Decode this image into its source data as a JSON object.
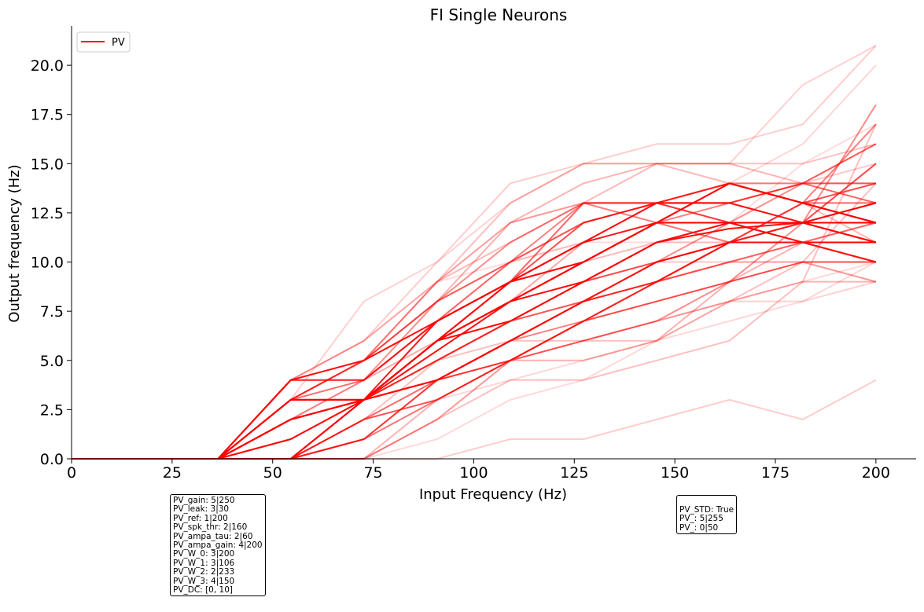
{
  "chart_data": {
    "type": "line",
    "title": "FI Single Neurons",
    "xlabel": "Input Frequency (Hz)",
    "ylabel": "Output frequency (Hz)",
    "xlim": [
      0,
      210
    ],
    "ylim": [
      0,
      22
    ],
    "xticks": [
      0,
      25,
      50,
      75,
      100,
      125,
      150,
      175,
      200
    ],
    "yticks": [
      0.0,
      2.5,
      5.0,
      7.5,
      10.0,
      12.5,
      15.0,
      17.5,
      20.0
    ],
    "xtick_labels": [
      "0",
      "25",
      "50",
      "75",
      "100",
      "125",
      "150",
      "175",
      "200"
    ],
    "ytick_labels": [
      "0.0",
      "2.5",
      "5.0",
      "7.5",
      "10.0",
      "12.5",
      "15.0",
      "17.5",
      "20.0"
    ],
    "grid": false,
    "legend": {
      "placement": "top-left",
      "entries": [
        {
          "label": "PV",
          "color": "#ff0000"
        }
      ]
    },
    "color": "#ff0000",
    "x": [
      0,
      18.2,
      36.4,
      54.5,
      72.7,
      90.9,
      109.1,
      127.3,
      145.5,
      163.6,
      181.8,
      200
    ],
    "series": [
      {
        "alpha": 0.95,
        "values": [
          0,
          0,
          0,
          4,
          5,
          7,
          9,
          10,
          12,
          14,
          13,
          12
        ]
      },
      {
        "alpha": 0.95,
        "values": [
          0,
          0,
          0,
          3,
          3,
          6,
          8,
          10,
          12,
          12,
          12,
          12
        ]
      },
      {
        "alpha": 0.95,
        "values": [
          0,
          0,
          0,
          2,
          3,
          6,
          8,
          9,
          11,
          11.7,
          12,
          11
        ]
      },
      {
        "alpha": 0.95,
        "values": [
          0,
          0,
          0,
          1,
          3,
          6,
          7,
          9,
          11,
          12,
          11,
          11
        ]
      },
      {
        "alpha": 0.95,
        "values": [
          0,
          0,
          0,
          0,
          3,
          5.5,
          8,
          10,
          12,
          12,
          12,
          13
        ]
      },
      {
        "alpha": 0.9,
        "values": [
          0,
          0,
          0,
          3,
          3,
          7,
          9,
          11,
          13,
          13,
          12,
          12
        ]
      },
      {
        "alpha": 0.9,
        "values": [
          0,
          0,
          0,
          2,
          3,
          6,
          9,
          11,
          12,
          14,
          13,
          12
        ]
      },
      {
        "alpha": 0.8,
        "values": [
          0,
          0,
          0,
          0,
          1,
          4,
          6,
          8,
          10,
          11,
          11,
          10
        ]
      },
      {
        "alpha": 0.7,
        "values": [
          0,
          0,
          0,
          0,
          3,
          4,
          6,
          8,
          9,
          11,
          11,
          11
        ]
      },
      {
        "alpha": 0.7,
        "values": [
          0,
          0,
          0,
          4,
          4,
          7,
          9,
          12,
          13,
          14,
          13,
          14
        ]
      },
      {
        "alpha": 0.7,
        "values": [
          0,
          0,
          0,
          3,
          3,
          5,
          7,
          9,
          10,
          11,
          12,
          12
        ]
      },
      {
        "alpha": 0.7,
        "values": [
          0,
          0,
          0,
          2,
          3,
          4,
          5,
          7,
          8,
          9,
          10,
          10
        ]
      },
      {
        "alpha": 0.6,
        "values": [
          0,
          0,
          0,
          0,
          2,
          3,
          5,
          7,
          9,
          11,
          13,
          13
        ]
      },
      {
        "alpha": 0.6,
        "values": [
          0,
          0,
          0,
          3,
          5,
          8,
          10,
          12,
          13,
          13,
          14,
          13
        ]
      },
      {
        "alpha": 0.6,
        "values": [
          0,
          0,
          0,
          2,
          3,
          6,
          9,
          13,
          13,
          12,
          12,
          11
        ]
      },
      {
        "alpha": 0.55,
        "values": [
          0,
          0,
          0,
          1,
          3,
          6,
          8,
          10,
          12,
          11,
          12,
          15
        ]
      },
      {
        "alpha": 0.5,
        "values": [
          0,
          0,
          0,
          4,
          4,
          7,
          10,
          13,
          12,
          13,
          14,
          16
        ]
      },
      {
        "alpha": 0.5,
        "values": [
          0,
          0,
          0,
          0,
          3,
          4,
          6,
          7,
          9,
          11,
          13,
          17
        ]
      },
      {
        "alpha": 0.45,
        "values": [
          0,
          0,
          0,
          0,
          1,
          3,
          5,
          6,
          7,
          9,
          12,
          18
        ]
      },
      {
        "alpha": 0.45,
        "values": [
          0,
          0,
          0,
          3,
          4,
          8,
          11,
          13,
          13,
          12,
          11,
          10
        ]
      },
      {
        "alpha": 0.45,
        "values": [
          0,
          0,
          0,
          2,
          3,
          5,
          7,
          8,
          10,
          12,
          14,
          14
        ]
      },
      {
        "alpha": 0.4,
        "values": [
          0,
          0,
          0,
          0,
          2,
          4,
          6,
          8,
          9,
          10,
          11,
          10
        ]
      },
      {
        "alpha": 0.4,
        "values": [
          0,
          0,
          0,
          0,
          0,
          2,
          5,
          7,
          9,
          10,
          10,
          9
        ]
      },
      {
        "alpha": 0.4,
        "values": [
          0,
          0,
          0,
          3,
          5,
          9,
          12,
          13,
          13,
          14,
          14,
          14
        ]
      },
      {
        "alpha": 0.35,
        "values": [
          0,
          0,
          0,
          2,
          3,
          6,
          8,
          11,
          13,
          13,
          12,
          15
        ]
      },
      {
        "alpha": 0.35,
        "values": [
          0,
          0,
          0,
          0,
          3,
          4,
          6,
          8,
          10,
          11,
          12,
          13
        ]
      },
      {
        "alpha": 0.3,
        "values": [
          0,
          0,
          0,
          4,
          5,
          8,
          12,
          14,
          15,
          15,
          14,
          16
        ]
      },
      {
        "alpha": 0.3,
        "values": [
          0,
          0,
          0,
          0,
          2,
          4,
          5,
          5,
          6,
          9,
          11,
          12
        ]
      },
      {
        "alpha": 0.3,
        "values": [
          0,
          0,
          0,
          0,
          0,
          3,
          5,
          6,
          7,
          8,
          9,
          9
        ]
      },
      {
        "alpha": 0.28,
        "values": [
          0,
          0,
          0,
          3,
          5,
          9,
          11,
          13,
          15,
          14,
          13,
          11
        ]
      },
      {
        "alpha": 0.28,
        "values": [
          0,
          0,
          0,
          2,
          4,
          7,
          9,
          10,
          11,
          11,
          11,
          12
        ]
      },
      {
        "alpha": 0.25,
        "values": [
          0,
          0,
          0,
          0,
          2,
          5,
          6,
          6,
          6,
          8,
          10,
          14
        ]
      },
      {
        "alpha": 0.25,
        "values": [
          0,
          0,
          0,
          0,
          0,
          2,
          4,
          4,
          5,
          6,
          9,
          17
        ]
      },
      {
        "alpha": 0.25,
        "values": [
          0,
          0,
          0,
          4,
          6,
          9,
          13,
          15,
          15,
          15,
          15,
          16
        ]
      },
      {
        "alpha": 0.22,
        "values": [
          0,
          0,
          0,
          3,
          4,
          7,
          10,
          12,
          13,
          14,
          14,
          15
        ]
      },
      {
        "alpha": 0.22,
        "values": [
          0,
          0,
          0,
          0,
          3,
          5,
          7,
          8,
          10,
          10,
          11,
          11
        ]
      },
      {
        "alpha": 0.2,
        "values": [
          0,
          0,
          0,
          4,
          6,
          10,
          14,
          15,
          16,
          16,
          17,
          21
        ]
      },
      {
        "alpha": 0.2,
        "values": [
          0,
          0,
          0,
          0,
          0,
          0,
          1,
          1,
          2,
          3,
          2,
          4
        ]
      },
      {
        "alpha": 0.2,
        "values": [
          0,
          0,
          0,
          2,
          4,
          6,
          7,
          8,
          9,
          10,
          11,
          12
        ]
      },
      {
        "alpha": 0.18,
        "values": [
          0,
          0,
          0,
          3,
          8,
          10,
          13,
          15,
          15,
          15,
          19,
          21
        ]
      },
      {
        "alpha": 0.18,
        "values": [
          0,
          0,
          0,
          0,
          2,
          3,
          5,
          6,
          7,
          8,
          8,
          9
        ]
      },
      {
        "alpha": 0.16,
        "values": [
          0,
          0,
          0,
          2,
          4,
          6,
          9,
          11,
          13,
          14,
          16,
          20
        ]
      },
      {
        "alpha": 0.16,
        "values": [
          0,
          0,
          0,
          0,
          1,
          3,
          4,
          5,
          6,
          7,
          8,
          10
        ]
      },
      {
        "alpha": 0.15,
        "values": [
          0,
          0,
          0,
          3,
          5,
          8,
          10,
          11,
          11,
          12,
          12,
          13
        ]
      },
      {
        "alpha": 0.15,
        "values": [
          0,
          0,
          0,
          0,
          0,
          1,
          3,
          4,
          6,
          8,
          9,
          10
        ]
      },
      {
        "alpha": 0.14,
        "values": [
          0,
          0,
          0,
          4,
          6,
          9,
          10,
          11,
          12,
          12,
          15,
          17
        ]
      }
    ]
  },
  "param_boxes": {
    "left": [
      "PV_gain: 5|250",
      "PV_leak: 3|30",
      "PV_ref: 1|200",
      "PV_spk_thr: 2|160",
      "PV_ampa_tau: 2|60",
      "PV_ampa_gain: 4|200",
      "PV_W_0: 3|200",
      "PV_W_1: 3|106",
      "PV_W_2: 2|233",
      "PV_W_3: 4|150",
      "PV_DC: [0, 10]"
    ],
    "right": [
      "PV_STD: True",
      "PV_: 5|255",
      "PV_: 0|50"
    ]
  }
}
